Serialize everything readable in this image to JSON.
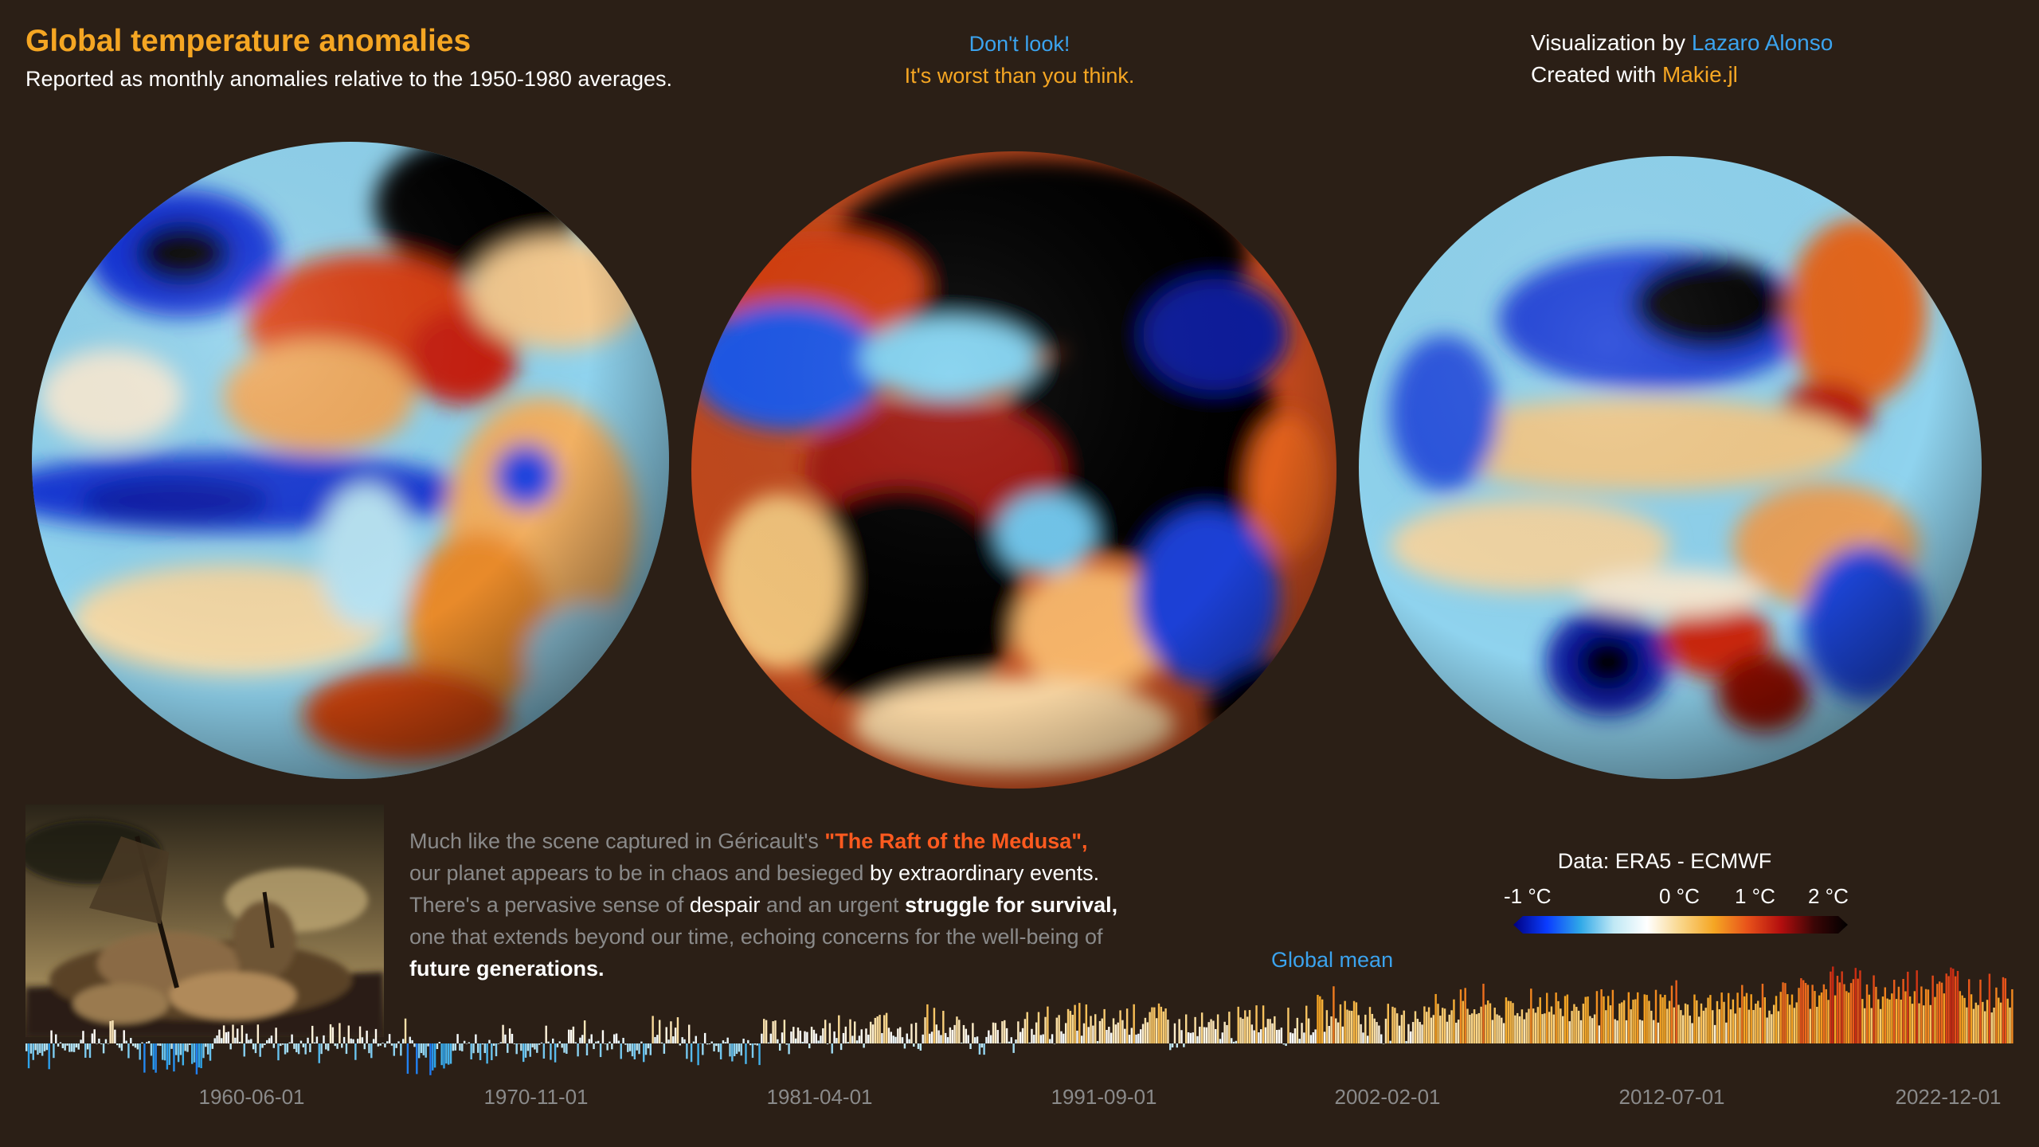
{
  "header": {
    "title": "Global temperature anomalies",
    "subtitle": "Reported as monthly anomalies relative to the 1950-1980 averages.",
    "note_line1": "Don't look!",
    "note_line2": "It's worst than you think.",
    "credit_prefix": "Visualization by ",
    "credit_author": "Lazaro Alonso",
    "created_prefix": "Created with ",
    "created_tool": "Makie.jl"
  },
  "narrative": {
    "l1_a": "Much like the scene captured in Géricault's ",
    "l1_b": "\"The Raft of the Medusa\",",
    "l2_a": "our planet appears to be in chaos and besieged ",
    "l2_b": "by extraordinary events.",
    "l3_a": "There's a pervasive sense of ",
    "l3_b": "despair",
    "l3_c": " and an urgent ",
    "l3_d": "struggle for survival,",
    "l4": "one that extends beyond our time, echoing concerns for the well-being of",
    "l5": "future generations."
  },
  "colors": {
    "background": "#2b1f16",
    "accent_orange": "#f5a623",
    "accent_blue": "#3ba3ee",
    "highlight_red": "#ff5a1f"
  },
  "chart_data": {
    "type": "bar",
    "series_label": "Global mean",
    "x_tick_labels": [
      "1960-06-01",
      "1970-11-01",
      "1981-04-01",
      "1991-09-01",
      "2002-02-01",
      "2012-07-01",
      "2022-12-01"
    ],
    "x_range": [
      "1950-01-01",
      "2022-12-01"
    ],
    "value_range": [
      -1,
      2
    ],
    "colorbar": {
      "title": "Data: ERA5 - ECMWF",
      "ticks": [
        "-1 °C",
        "0 °C",
        "1 °C",
        "2 °C"
      ],
      "tick_values": [
        -1,
        0,
        1,
        2
      ],
      "colors": [
        "#000080",
        "#0a3cff",
        "#2fa8e8",
        "#bfe8f5",
        "#ffffff",
        "#f9d68a",
        "#f5a623",
        "#e8521a",
        "#b30e0e",
        "#3a0606",
        "#000000"
      ]
    },
    "yearly_means": [
      {
        "year": 1950,
        "value": -0.14
      },
      {
        "year": 1951,
        "value": -0.02
      },
      {
        "year": 1952,
        "value": 0.03
      },
      {
        "year": 1953,
        "value": 0.06
      },
      {
        "year": 1954,
        "value": -0.14
      },
      {
        "year": 1955,
        "value": -0.16
      },
      {
        "year": 1956,
        "value": -0.18
      },
      {
        "year": 1957,
        "value": 0.04
      },
      {
        "year": 1958,
        "value": 0.06
      },
      {
        "year": 1959,
        "value": 0.03
      },
      {
        "year": 1960,
        "value": -0.03
      },
      {
        "year": 1961,
        "value": 0.06
      },
      {
        "year": 1962,
        "value": 0.04
      },
      {
        "year": 1963,
        "value": 0.07
      },
      {
        "year": 1964,
        "value": -0.2
      },
      {
        "year": 1965,
        "value": -0.1
      },
      {
        "year": 1966,
        "value": -0.05
      },
      {
        "year": 1967,
        "value": -0.02
      },
      {
        "year": 1968,
        "value": -0.07
      },
      {
        "year": 1969,
        "value": 0.07
      },
      {
        "year": 1970,
        "value": 0.03
      },
      {
        "year": 1971,
        "value": -0.08
      },
      {
        "year": 1972,
        "value": 0.01
      },
      {
        "year": 1973,
        "value": 0.16
      },
      {
        "year": 1974,
        "value": -0.07
      },
      {
        "year": 1975,
        "value": -0.01
      },
      {
        "year": 1976,
        "value": -0.1
      },
      {
        "year": 1977,
        "value": 0.18
      },
      {
        "year": 1978,
        "value": 0.07
      },
      {
        "year": 1979,
        "value": 0.16
      },
      {
        "year": 1980,
        "value": 0.26
      },
      {
        "year": 1981,
        "value": 0.32
      },
      {
        "year": 1982,
        "value": 0.14
      },
      {
        "year": 1983,
        "value": 0.31
      },
      {
        "year": 1984,
        "value": 0.16
      },
      {
        "year": 1985,
        "value": 0.12
      },
      {
        "year": 1986,
        "value": 0.18
      },
      {
        "year": 1987,
        "value": 0.32
      },
      {
        "year": 1988,
        "value": 0.39
      },
      {
        "year": 1989,
        "value": 0.27
      },
      {
        "year": 1990,
        "value": 0.45
      },
      {
        "year": 1991,
        "value": 0.41
      },
      {
        "year": 1992,
        "value": 0.22
      },
      {
        "year": 1993,
        "value": 0.23
      },
      {
        "year": 1994,
        "value": 0.31
      },
      {
        "year": 1995,
        "value": 0.45
      },
      {
        "year": 1996,
        "value": 0.33
      },
      {
        "year": 1997,
        "value": 0.46
      },
      {
        "year": 1998,
        "value": 0.61
      },
      {
        "year": 1999,
        "value": 0.38
      },
      {
        "year": 2000,
        "value": 0.39
      },
      {
        "year": 2001,
        "value": 0.53
      },
      {
        "year": 2002,
        "value": 0.63
      },
      {
        "year": 2003,
        "value": 0.62
      },
      {
        "year": 2004,
        "value": 0.53
      },
      {
        "year": 2005,
        "value": 0.68
      },
      {
        "year": 2006,
        "value": 0.64
      },
      {
        "year": 2007,
        "value": 0.66
      },
      {
        "year": 2008,
        "value": 0.54
      },
      {
        "year": 2009,
        "value": 0.65
      },
      {
        "year": 2010,
        "value": 0.72
      },
      {
        "year": 2011,
        "value": 0.61
      },
      {
        "year": 2012,
        "value": 0.64
      },
      {
        "year": 2013,
        "value": 0.68
      },
      {
        "year": 2014,
        "value": 0.75
      },
      {
        "year": 2015,
        "value": 0.9
      },
      {
        "year": 2016,
        "value": 1.01
      },
      {
        "year": 2017,
        "value": 0.92
      },
      {
        "year": 2018,
        "value": 0.85
      },
      {
        "year": 2019,
        "value": 0.98
      },
      {
        "year": 2020,
        "value": 1.02
      },
      {
        "year": 2021,
        "value": 0.85
      },
      {
        "year": 2022,
        "value": 0.89
      }
    ]
  }
}
